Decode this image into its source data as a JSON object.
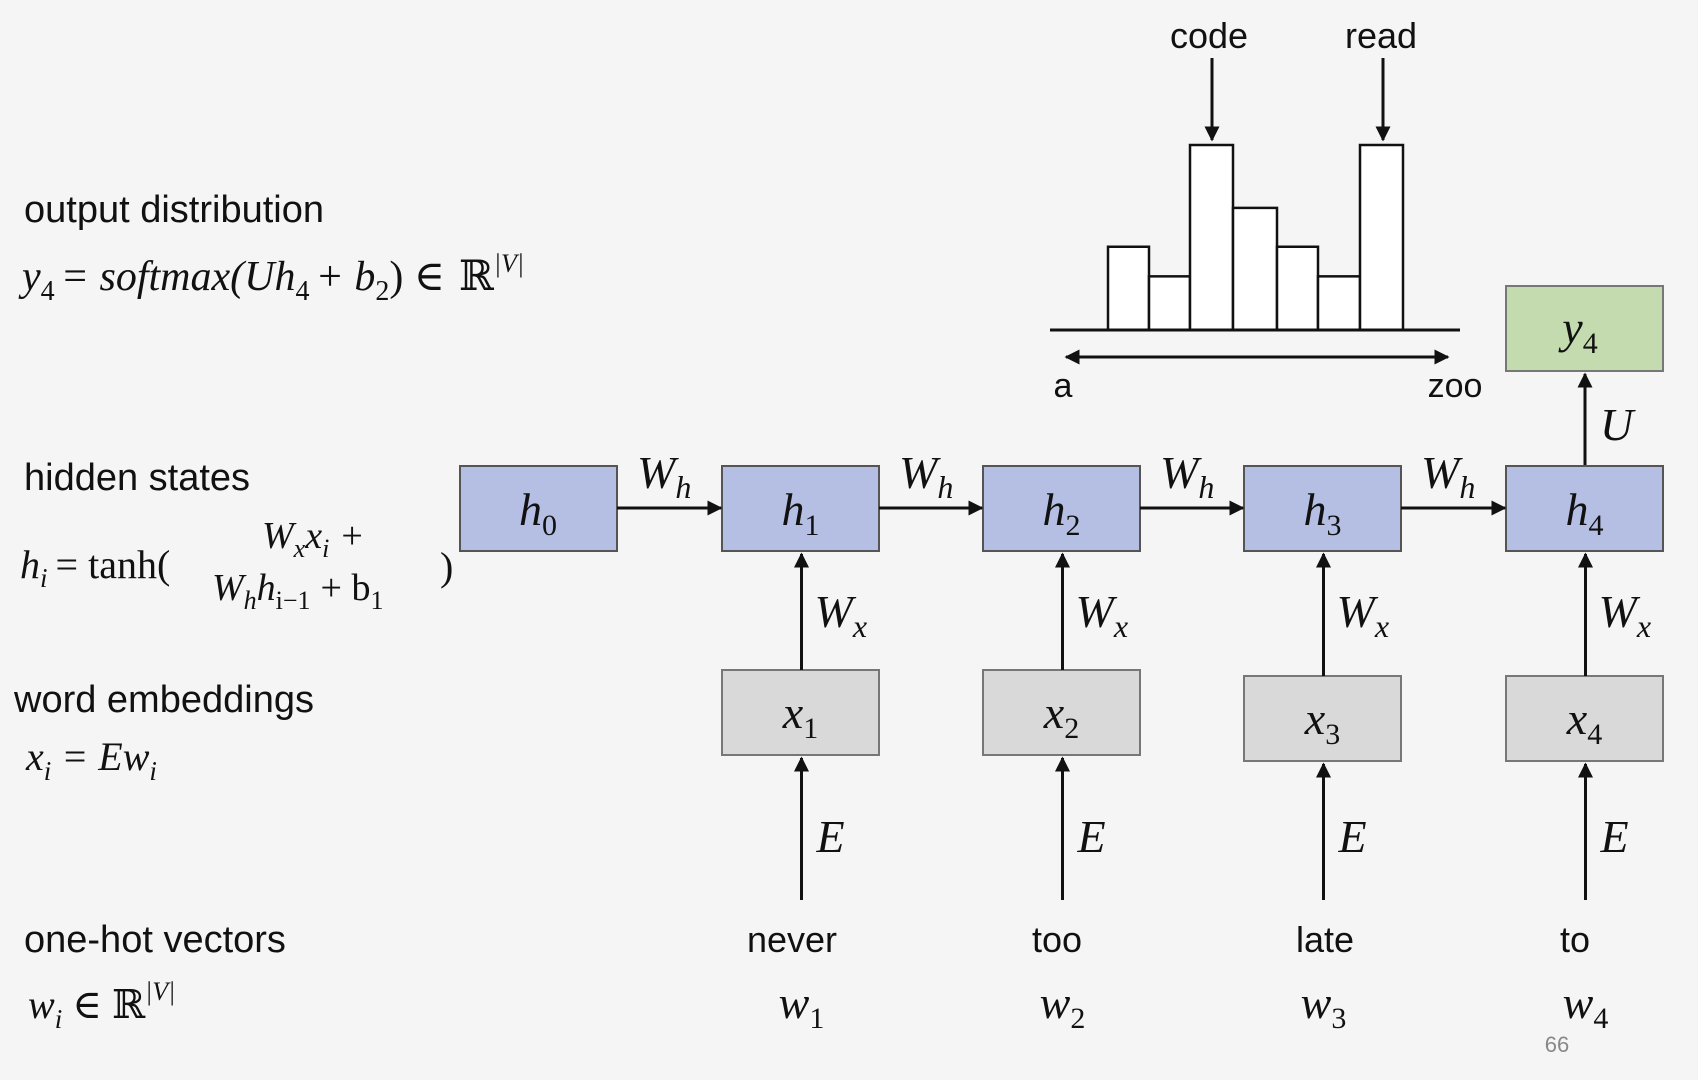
{
  "labels": {
    "output_distribution": "output distribution",
    "hidden_states": "hidden states",
    "word_embeddings": "word embeddings",
    "one_hot_vectors": "one-hot vectors"
  },
  "equations": {
    "output_lhs": "y",
    "output_lhs_sub": "4",
    "output_rhs_a": "= softmax(Uh",
    "output_rhs_sub1": "4",
    "output_rhs_b": "+ b",
    "output_rhs_sub2": "2",
    "output_rhs_c": ") ∈",
    "reals": "ℝ",
    "vocab_sup": "|V|",
    "hidden_lhs": "h",
    "hidden_lhs_sub": "i",
    "hidden_eq": "= tanh(",
    "hidden_top": "W",
    "hidden_top_sub": "x",
    "hidden_top_x": "x",
    "hidden_top_x_sub": "i",
    "hidden_top_plus": "+",
    "hidden_bot": "W",
    "hidden_bot_sub": "h",
    "hidden_bot_h": "h",
    "hidden_bot_h_sub": "i−1",
    "hidden_bot_plus": "+ b",
    "hidden_bot_b_sub": "1",
    "hidden_close": ")",
    "embed_lhs": "x",
    "embed_lhs_sub": "i",
    "embed_rhs": "= Ew",
    "embed_rhs_sub": "i",
    "onehot_lhs": "w",
    "onehot_lhs_sub": "i",
    "onehot_in": "∈",
    "onehot_reals": "ℝ",
    "onehot_sup": "|V|"
  },
  "histogram": {
    "bars": [
      0.45,
      0.29,
      1.0,
      0.66,
      0.45,
      0.29,
      1.0
    ],
    "annotations": [
      "code",
      "read"
    ],
    "axis_start": "a",
    "axis_end": "zoo"
  },
  "nodes": {
    "h0": {
      "base": "h",
      "sub": "0"
    },
    "hidden": [
      {
        "base": "h",
        "sub": "1"
      },
      {
        "base": "h",
        "sub": "2"
      },
      {
        "base": "h",
        "sub": "3"
      },
      {
        "base": "h",
        "sub": "4"
      }
    ],
    "embeddings": [
      {
        "base": "x",
        "sub": "1"
      },
      {
        "base": "x",
        "sub": "2"
      },
      {
        "base": "x",
        "sub": "3"
      },
      {
        "base": "x",
        "sub": "4"
      }
    ],
    "output": {
      "base": "y",
      "sub": "4"
    }
  },
  "weights": {
    "recurrent": "W",
    "recurrent_sub": "h",
    "input": "W",
    "input_sub": "x",
    "embedding": "E",
    "output": "U"
  },
  "words": [
    {
      "word": "never",
      "base": "w",
      "sub": "1"
    },
    {
      "word": "too",
      "base": "w",
      "sub": "2"
    },
    {
      "word": "late",
      "base": "w",
      "sub": "3"
    },
    {
      "word": "to",
      "base": "w",
      "sub": "4"
    }
  ],
  "page_number": "66",
  "colors": {
    "hidden": "#b4bfe3",
    "embedding": "#d9d9d9",
    "output": "#c4dbb0"
  }
}
